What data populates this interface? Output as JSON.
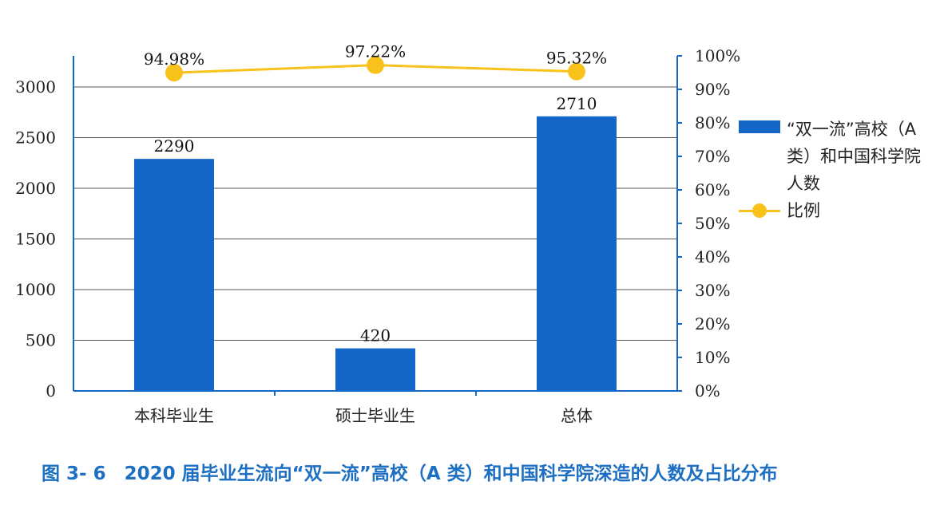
{
  "chart_data": {
    "type": "bar+line",
    "categories": [
      "本科毕业生",
      "硕士毕业生",
      "总体"
    ],
    "series": [
      {
        "name": "“双一流”高校（A类）和中国科学院人数",
        "type": "bar",
        "axis": "left",
        "values": [
          2290,
          420,
          2710
        ],
        "labels": [
          "2290",
          "420",
          "2710"
        ],
        "color": "#1467c6"
      },
      {
        "name": "比例",
        "type": "line",
        "axis": "right",
        "values": [
          94.98,
          97.22,
          95.32
        ],
        "labels": [
          "94.98%",
          "97.22%",
          "95.32%"
        ],
        "color": "#f8c21b"
      }
    ],
    "left_axis": {
      "ylim": [
        0,
        3300
      ],
      "ticks": [
        "0",
        "500",
        "1000",
        "1500",
        "2000",
        "2500",
        "3000"
      ]
    },
    "right_axis": {
      "ylim": [
        0,
        100
      ],
      "ticks": [
        "0%",
        "10%",
        "20%",
        "30%",
        "40%",
        "50%",
        "60%",
        "70%",
        "80%",
        "90%",
        "100%"
      ]
    },
    "grid": true,
    "legend_position": "right",
    "caption": "图 3- 6　2020 届毕业生流向“双一流”高校（A 类）和中国科学院深造的人数及占比分布"
  }
}
